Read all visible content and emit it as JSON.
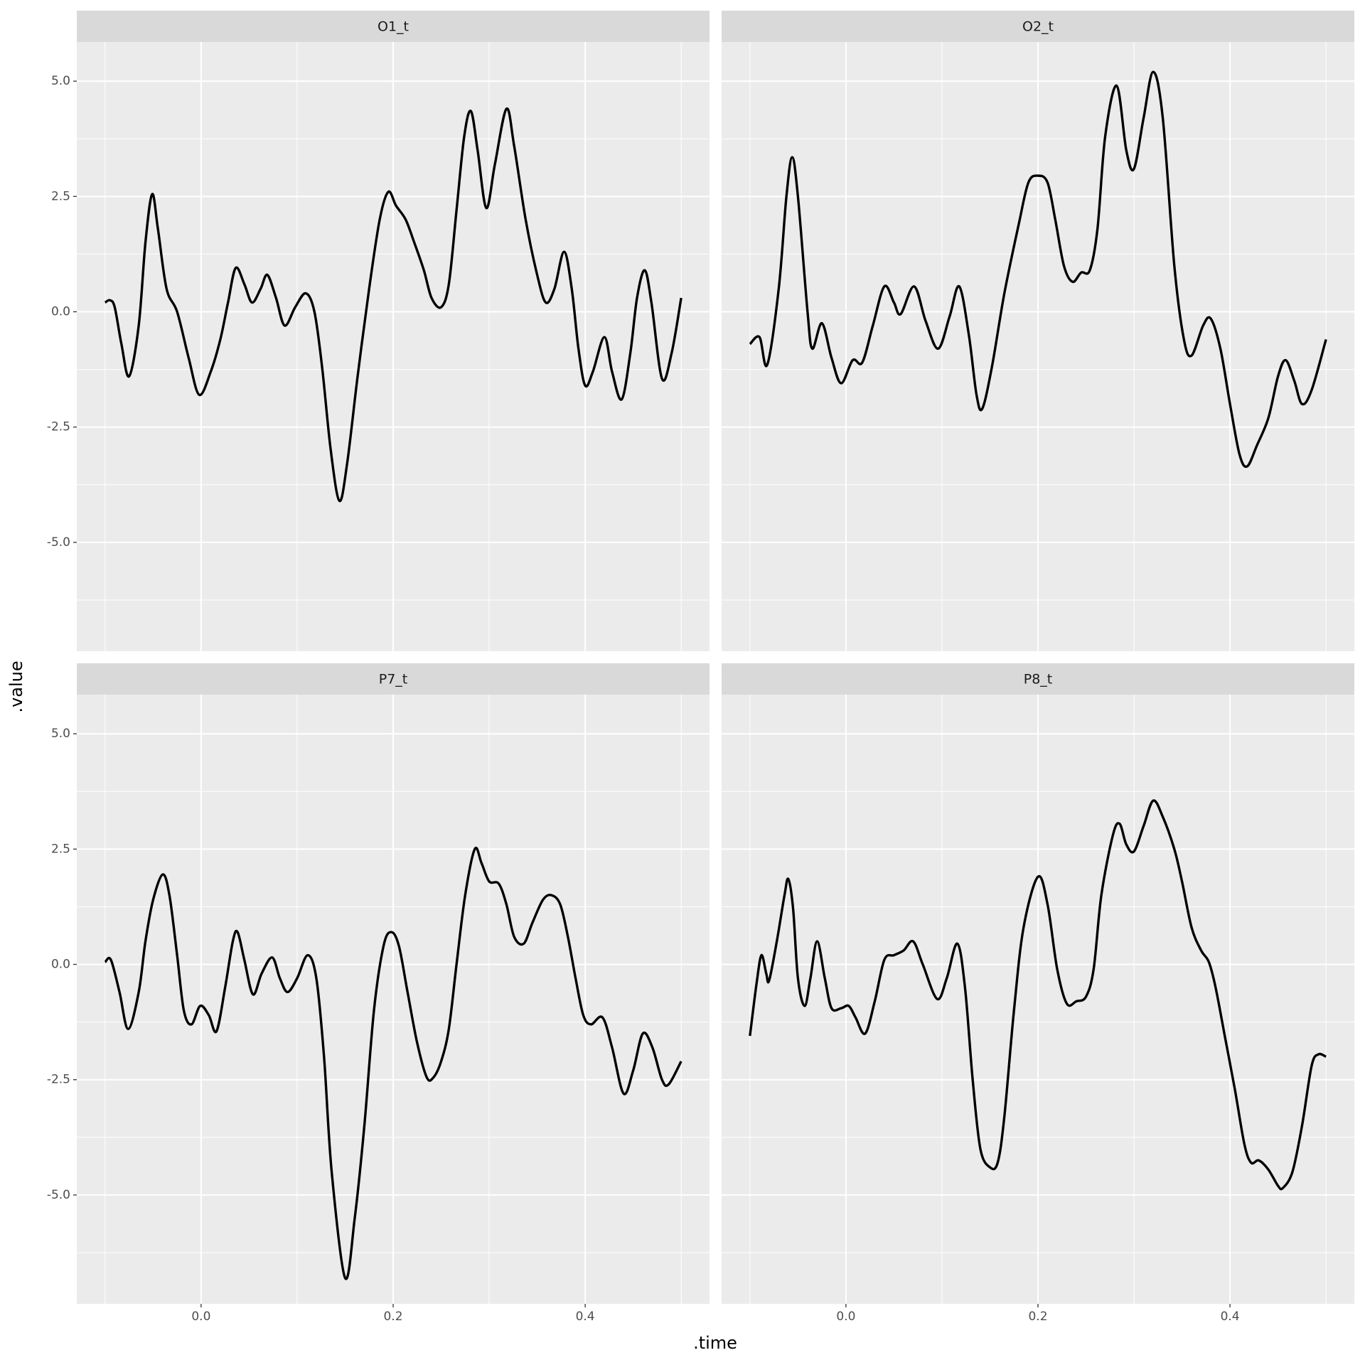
{
  "chart_data": {
    "type": "facet",
    "xlabel": ".time",
    "ylabel": ".value",
    "xlim": [
      -0.1295,
      0.5295
    ],
    "ylim": [
      -7.36,
      5.85
    ],
    "xticks": [
      {
        "value": 0,
        "label": "0.0"
      },
      0.2,
      0.4
    ],
    "yticks": [
      {
        "value": -5,
        "label": "-5.0"
      },
      -2.5,
      {
        "value": 0,
        "label": "0.0"
      },
      2.5,
      {
        "value": 5,
        "label": "5.0"
      }
    ],
    "xminor": [
      -0.1,
      0.1,
      0.3,
      0.5
    ],
    "yminor": [
      -6.25,
      -3.75,
      -1.25,
      1.25,
      3.75
    ],
    "grid": true,
    "panels": [
      {
        "type": "line",
        "title": "O1_t",
        "color": "#000000",
        "x": [
          -0.1,
          -0.095,
          -0.09,
          -0.083,
          -0.075,
          -0.065,
          -0.058,
          -0.051,
          -0.045,
          -0.036,
          -0.025,
          -0.013,
          -0.002,
          0.01,
          0.02,
          0.028,
          0.036,
          0.045,
          0.053,
          0.062,
          0.069,
          0.078,
          0.087,
          0.098,
          0.109,
          0.118,
          0.126,
          0.135,
          0.144,
          0.152,
          0.163,
          0.175,
          0.186,
          0.195,
          0.203,
          0.213,
          0.222,
          0.232,
          0.24,
          0.25,
          0.258,
          0.266,
          0.274,
          0.281,
          0.288,
          0.297,
          0.306,
          0.318,
          0.326,
          0.338,
          0.35,
          0.359,
          0.368,
          0.378,
          0.386,
          0.393,
          0.4,
          0.408,
          0.42,
          0.428,
          0.438,
          0.447,
          0.454,
          0.462,
          0.469,
          0.48,
          0.49,
          0.5
        ],
        "values": [
          0.2,
          0.25,
          0.1,
          -0.7,
          -1.4,
          -0.3,
          1.5,
          2.55,
          1.8,
          0.5,
          0.0,
          -1.0,
          -1.8,
          -1.3,
          -0.6,
          0.2,
          0.95,
          0.6,
          0.2,
          0.5,
          0.8,
          0.3,
          -0.3,
          0.1,
          0.4,
          0.0,
          -1.2,
          -3.0,
          -4.1,
          -3.3,
          -1.4,
          0.5,
          2.0,
          2.6,
          2.3,
          2.0,
          1.5,
          0.9,
          0.3,
          0.1,
          0.6,
          2.2,
          3.8,
          4.35,
          3.5,
          2.25,
          3.2,
          4.4,
          3.6,
          2.0,
          0.8,
          0.2,
          0.5,
          1.3,
          0.5,
          -0.8,
          -1.6,
          -1.3,
          -0.55,
          -1.3,
          -1.9,
          -0.9,
          0.3,
          0.9,
          0.2,
          -1.45,
          -0.9,
          0.3
        ]
      },
      {
        "type": "line",
        "title": "O2_t",
        "color": "#000000",
        "x": [
          -0.1,
          -0.09,
          -0.082,
          -0.07,
          -0.062,
          -0.056,
          -0.05,
          -0.04,
          -0.035,
          -0.025,
          -0.015,
          -0.005,
          0.007,
          0.017,
          0.028,
          0.04,
          0.05,
          0.057,
          0.071,
          0.083,
          0.096,
          0.108,
          0.118,
          0.128,
          0.136,
          0.142,
          0.152,
          0.165,
          0.18,
          0.19,
          0.2,
          0.21,
          0.218,
          0.227,
          0.236,
          0.245,
          0.254,
          0.262,
          0.27,
          0.282,
          0.292,
          0.3,
          0.31,
          0.32,
          0.33,
          0.342,
          0.352,
          0.36,
          0.372,
          0.38,
          0.39,
          0.4,
          0.41,
          0.418,
          0.428,
          0.44,
          0.45,
          0.458,
          0.467,
          0.475,
          0.485,
          0.5
        ],
        "values": [
          -0.7,
          -0.55,
          -1.15,
          0.5,
          2.5,
          3.35,
          2.5,
          0.0,
          -0.8,
          -0.25,
          -1.0,
          -1.55,
          -1.05,
          -1.1,
          -0.3,
          0.55,
          0.2,
          -0.05,
          0.55,
          -0.2,
          -0.8,
          -0.1,
          0.55,
          -0.5,
          -1.8,
          -2.1,
          -1.2,
          0.4,
          1.9,
          2.8,
          2.95,
          2.8,
          2.0,
          1.0,
          0.65,
          0.85,
          0.9,
          1.8,
          3.8,
          4.9,
          3.5,
          3.1,
          4.2,
          5.2,
          4.2,
          1.0,
          -0.6,
          -0.95,
          -0.3,
          -0.15,
          -0.8,
          -2.0,
          -3.1,
          -3.35,
          -2.9,
          -2.3,
          -1.4,
          -1.05,
          -1.5,
          -2.0,
          -1.7,
          -0.6
        ]
      },
      {
        "type": "line",
        "title": "P7_t",
        "color": "#000000",
        "x": [
          -0.1,
          -0.094,
          -0.085,
          -0.076,
          -0.065,
          -0.058,
          -0.05,
          -0.04,
          -0.033,
          -0.025,
          -0.018,
          -0.01,
          -0.001,
          0.008,
          0.016,
          0.025,
          0.033,
          0.038,
          0.045,
          0.054,
          0.063,
          0.074,
          0.082,
          0.09,
          0.1,
          0.111,
          0.12,
          0.128,
          0.136,
          0.15,
          0.16,
          0.17,
          0.18,
          0.19,
          0.198,
          0.206,
          0.215,
          0.225,
          0.235,
          0.242,
          0.25,
          0.258,
          0.266,
          0.275,
          0.285,
          0.292,
          0.3,
          0.31,
          0.318,
          0.326,
          0.336,
          0.345,
          0.356,
          0.365,
          0.374,
          0.382,
          0.39,
          0.398,
          0.406,
          0.418,
          0.428,
          0.44,
          0.45,
          0.46,
          0.47,
          0.48,
          0.487,
          0.5
        ],
        "values": [
          0.05,
          0.1,
          -0.6,
          -1.4,
          -0.6,
          0.5,
          1.4,
          1.95,
          1.5,
          0.2,
          -1.0,
          -1.3,
          -0.9,
          -1.1,
          -1.45,
          -0.5,
          0.5,
          0.7,
          0.1,
          -0.65,
          -0.2,
          0.15,
          -0.3,
          -0.6,
          -0.3,
          0.2,
          -0.3,
          -2.0,
          -4.5,
          -6.8,
          -5.5,
          -3.5,
          -1.0,
          0.4,
          0.7,
          0.4,
          -0.6,
          -1.7,
          -2.45,
          -2.45,
          -2.1,
          -1.4,
          0.0,
          1.5,
          2.5,
          2.2,
          1.8,
          1.75,
          1.3,
          0.6,
          0.45,
          0.9,
          1.4,
          1.5,
          1.3,
          0.6,
          -0.3,
          -1.1,
          -1.3,
          -1.15,
          -1.8,
          -2.8,
          -2.3,
          -1.5,
          -1.8,
          -2.5,
          -2.6,
          -2.1
        ]
      },
      {
        "type": "line",
        "title": "P8_t",
        "color": "#000000",
        "x": [
          -0.1,
          -0.093,
          -0.088,
          -0.083,
          -0.08,
          -0.072,
          -0.064,
          -0.06,
          -0.055,
          -0.05,
          -0.043,
          -0.037,
          -0.03,
          -0.022,
          -0.015,
          -0.005,
          0.003,
          0.01,
          0.02,
          0.03,
          0.04,
          0.05,
          0.06,
          0.07,
          0.08,
          0.095,
          0.105,
          0.116,
          0.124,
          0.132,
          0.14,
          0.15,
          0.158,
          0.165,
          0.175,
          0.185,
          0.2,
          0.21,
          0.22,
          0.23,
          0.24,
          0.25,
          0.258,
          0.266,
          0.278,
          0.285,
          0.292,
          0.3,
          0.31,
          0.32,
          0.33,
          0.342,
          0.35,
          0.36,
          0.37,
          0.378,
          0.385,
          0.395,
          0.405,
          0.415,
          0.422,
          0.43,
          0.44,
          0.45,
          0.455,
          0.465,
          0.475,
          0.485,
          0.492,
          0.5
        ],
        "values": [
          -1.55,
          -0.4,
          0.2,
          -0.2,
          -0.35,
          0.5,
          1.5,
          1.85,
          1.2,
          -0.3,
          -0.9,
          -0.3,
          0.5,
          -0.3,
          -0.95,
          -0.95,
          -0.9,
          -1.15,
          -1.5,
          -0.8,
          0.1,
          0.2,
          0.3,
          0.5,
          0.0,
          -0.75,
          -0.3,
          0.45,
          -0.5,
          -2.5,
          -4.0,
          -4.4,
          -4.3,
          -3.3,
          -1.0,
          0.8,
          1.9,
          1.3,
          -0.1,
          -0.85,
          -0.8,
          -0.7,
          -0.1,
          1.5,
          2.8,
          3.05,
          2.6,
          2.45,
          3.0,
          3.55,
          3.2,
          2.5,
          1.8,
          0.8,
          0.3,
          0.05,
          -0.5,
          -1.6,
          -2.7,
          -3.9,
          -4.3,
          -4.25,
          -4.45,
          -4.8,
          -4.85,
          -4.5,
          -3.5,
          -2.2,
          -1.95,
          -2.0
        ]
      }
    ]
  }
}
